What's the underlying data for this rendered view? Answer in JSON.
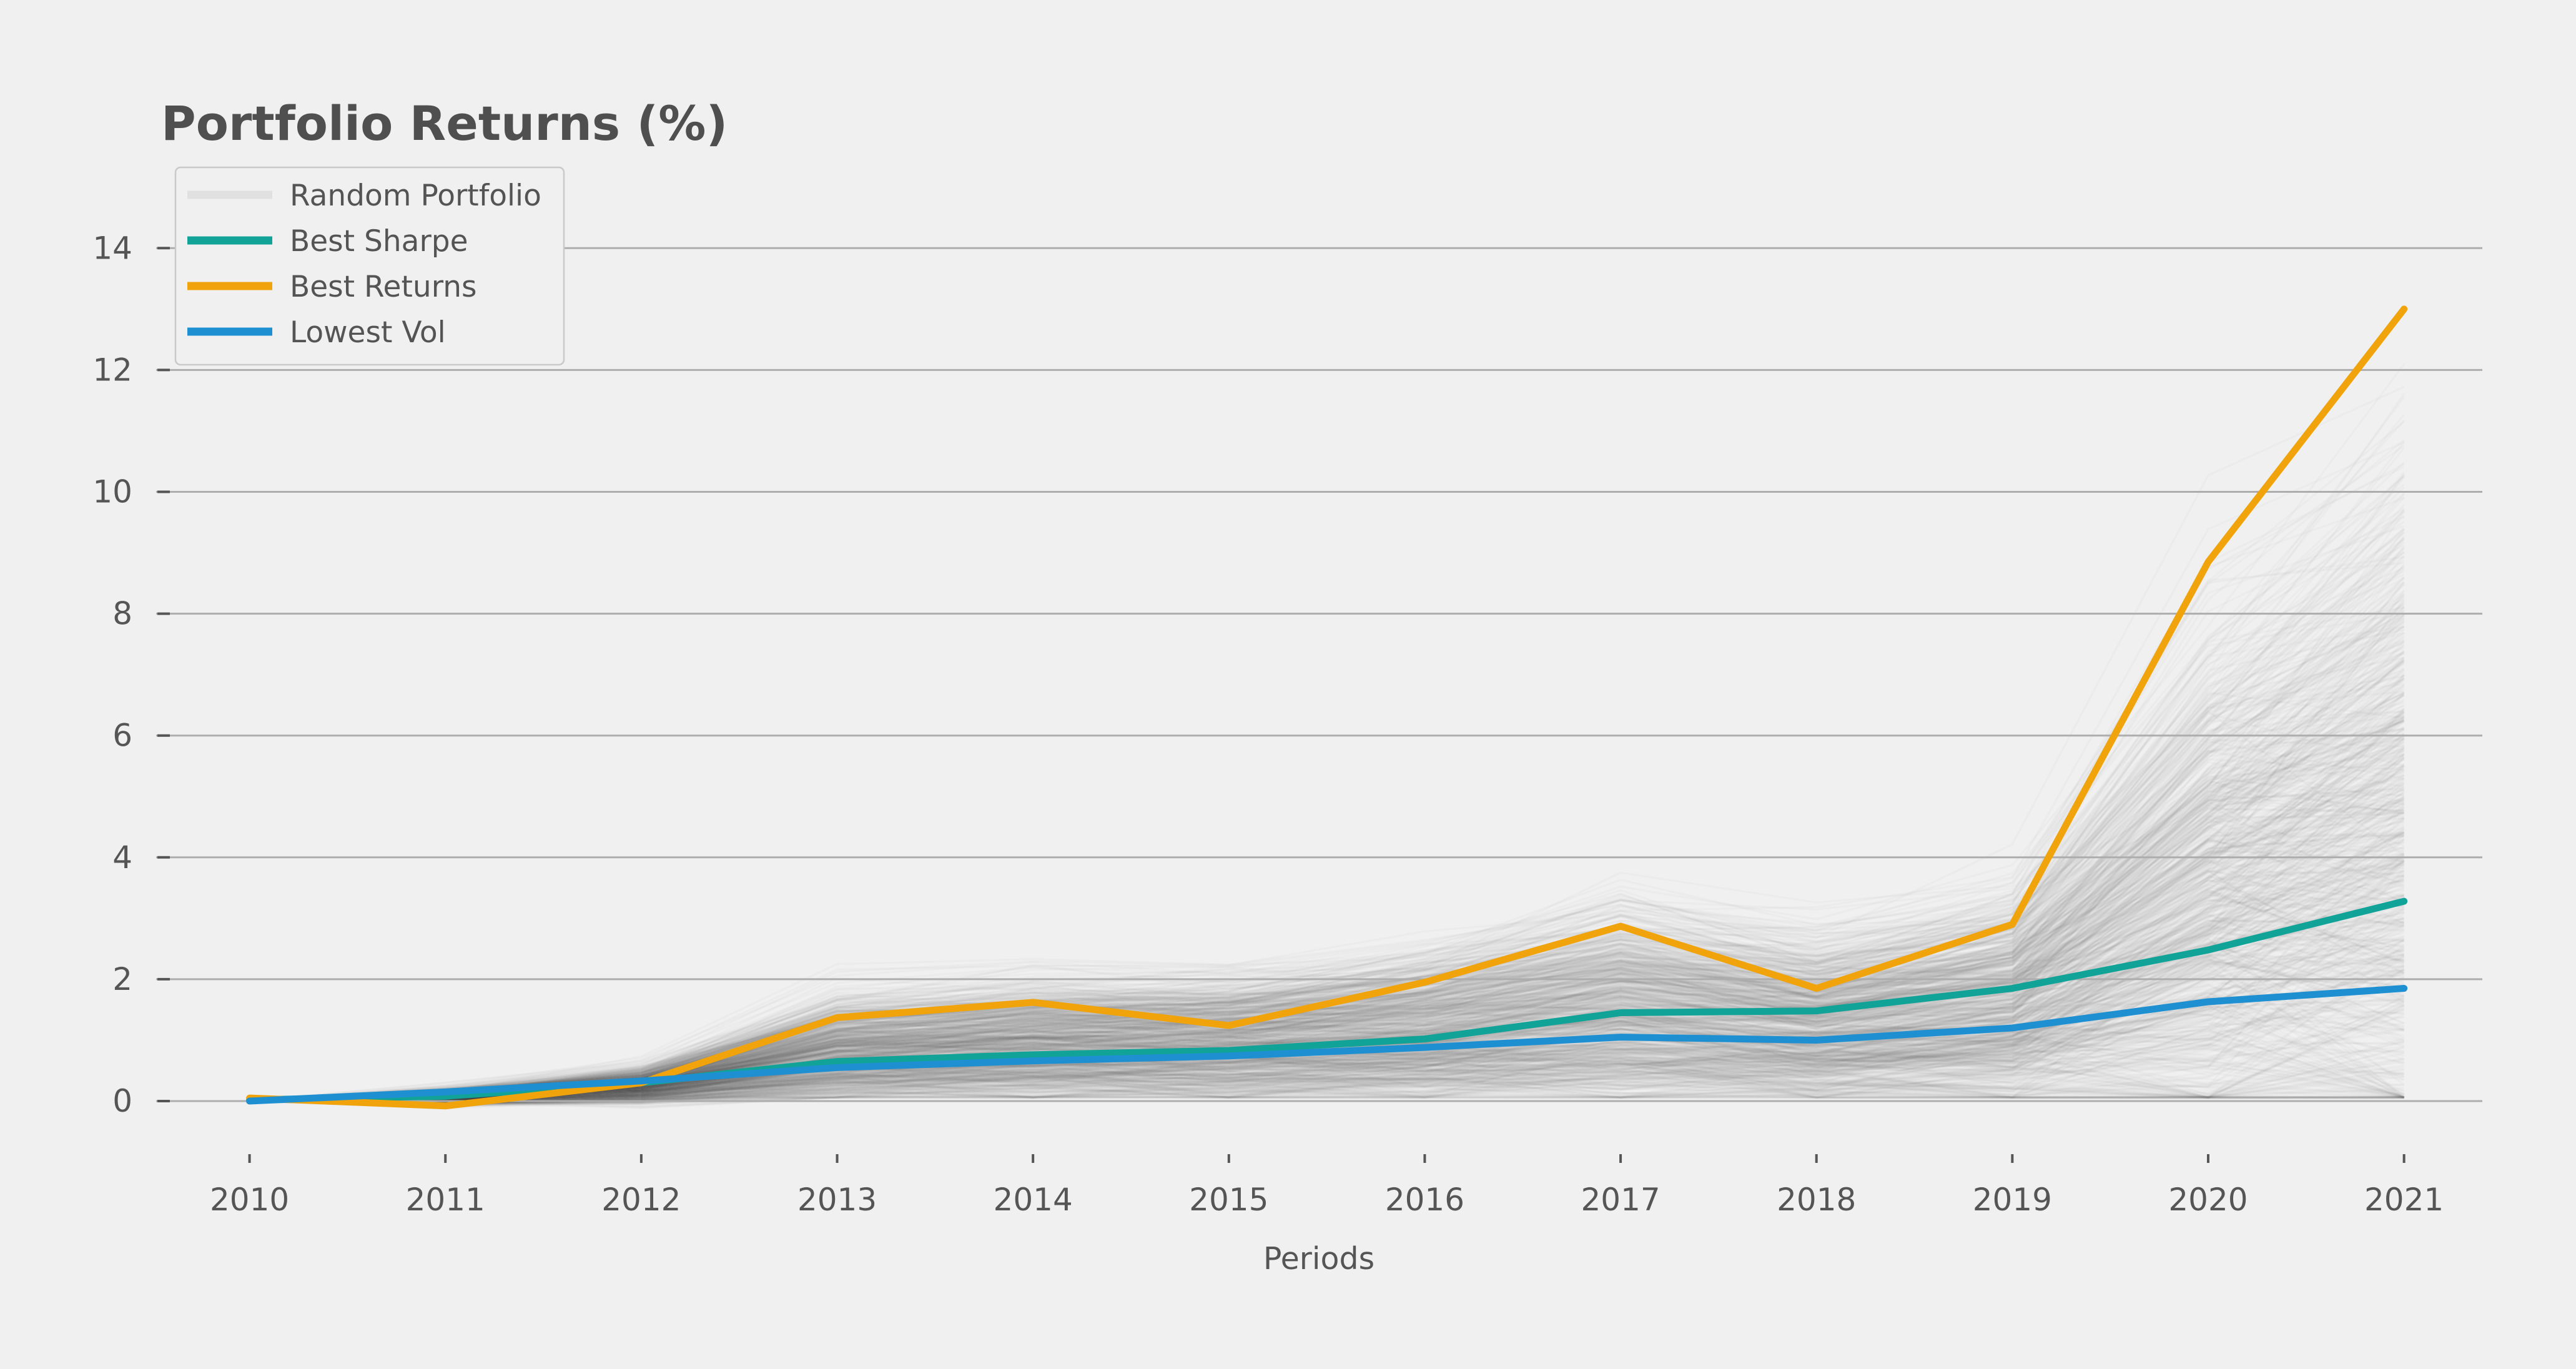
{
  "chart": {
    "title": "Portfolio Returns (%)",
    "background_color": "#f0f0f0",
    "grid_color": "#adadad",
    "text_color": "#555555",
    "title_color": "#4f4f4f"
  },
  "legend": {
    "items": [
      {
        "label": "Random Portfolio",
        "color": "rgba(88,88,88,0.10)"
      },
      {
        "label": "Best Sharpe",
        "color": "#11a398"
      },
      {
        "label": "Best Returns",
        "color": "#f0a30a"
      },
      {
        "label": "Lowest Vol",
        "color": "#1e90d2"
      }
    ]
  },
  "chart_data": {
    "type": "line",
    "title": "Portfolio Returns (%)",
    "xlabel": "Periods",
    "ylabel": "",
    "x": [
      2010,
      2011,
      2012,
      2013,
      2014,
      2015,
      2016,
      2017,
      2018,
      2019,
      2020,
      2021
    ],
    "yticks": [
      0,
      2,
      4,
      6,
      8,
      10,
      12,
      14
    ],
    "ylim": [
      -0.8,
      14.9
    ],
    "grid": true,
    "legend_position": "upper-left",
    "series": [
      {
        "name": "Best Sharpe",
        "color": "#11a398",
        "values": [
          0.02,
          0.08,
          0.3,
          0.65,
          0.76,
          0.83,
          1.02,
          1.45,
          1.48,
          1.85,
          2.48,
          3.28
        ]
      },
      {
        "name": "Best Returns",
        "color": "#f0a30a",
        "values": [
          0.05,
          -0.08,
          0.3,
          1.37,
          1.62,
          1.24,
          1.95,
          2.87,
          1.85,
          2.9,
          8.85,
          13.0
        ]
      },
      {
        "name": "Lowest Vol",
        "color": "#1e90d2",
        "values": [
          0.0,
          0.15,
          0.33,
          0.55,
          0.66,
          0.74,
          0.88,
          1.05,
          1.0,
          1.2,
          1.63,
          1.85
        ]
      }
    ],
    "random_portfolios": {
      "name": "Random Portfolio",
      "count": 800,
      "line_color_rgb": [
        88,
        88,
        88
      ],
      "line_alpha": 0.028,
      "center": [
        0,
        0.08,
        0.3,
        1.0,
        1.15,
        1.18,
        1.42,
        1.85,
        1.55,
        1.95,
        4.2,
        5.6
      ],
      "spread": [
        0.005,
        0.07,
        0.1,
        0.22,
        0.26,
        0.27,
        0.32,
        0.42,
        0.36,
        0.46,
        1.35,
        1.9
      ],
      "envelope_min": [
        0,
        -0.22,
        0.02,
        0.1,
        0.15,
        0.15,
        0.2,
        0.3,
        0.25,
        0.35,
        0.6,
        0.55
      ],
      "envelope_max": [
        0,
        0.32,
        0.62,
        1.95,
        2.45,
        2.6,
        3.1,
        3.85,
        3.3,
        4.3,
        10.8,
        12.0
      ]
    }
  }
}
